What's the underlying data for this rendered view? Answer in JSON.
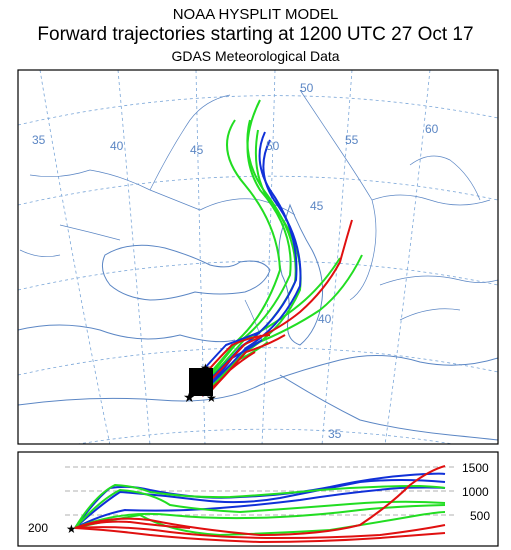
{
  "header": {
    "line1": "NOAA HYSPLIT MODEL",
    "line2": "Forward trajectories starting at 1200 UTC 27 Oct 17",
    "line3": "GDAS Meteorological Data"
  },
  "map": {
    "longitude_labels": [
      "35",
      "40",
      "45",
      "50",
      "55",
      "60"
    ],
    "latitude_labels": [
      "50",
      "45",
      "40",
      "35"
    ],
    "colors": {
      "border": "#000000",
      "grid": "#7aa6d8",
      "coast": "#5b86c4",
      "red": "#e01010",
      "blue": "#1030d8",
      "green": "#22dd22"
    },
    "source_marker": "star"
  },
  "altitude_panel": {
    "tick_labels": [
      "1500",
      "1000",
      "500"
    ],
    "start_label": "200"
  }
}
